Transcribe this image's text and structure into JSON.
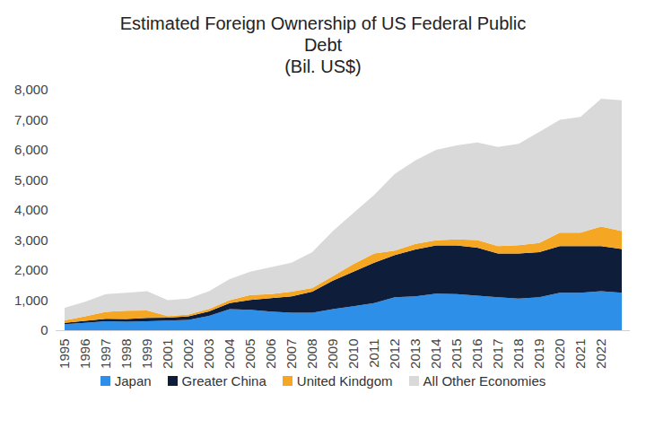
{
  "chart_data": {
    "type": "area",
    "title": "Estimated Foreign Ownership of US Federal Public Debt",
    "subtitle": "(Bil. US$)",
    "stacked": true,
    "grid": false,
    "legend": "bottom",
    "categories": [
      "1995",
      "1996",
      "1997",
      "1998",
      "1999",
      "2001",
      "2002",
      "2003",
      "2004",
      "2005",
      "2006",
      "2007",
      "2008",
      "2009",
      "2010",
      "2011",
      "2012",
      "2013",
      "2014",
      "2015",
      "2016",
      "2017",
      "2018",
      "2019",
      "2020",
      "2021",
      "2022",
      null
    ],
    "ylim": [
      0,
      8000
    ],
    "yticks": [
      0,
      {
        "value": 1000,
        "label": "1,000"
      },
      {
        "value": 2000,
        "label": "2,000"
      },
      {
        "value": 3000,
        "label": "3,000"
      },
      {
        "value": 4000,
        "label": "4,000"
      },
      {
        "value": 5000,
        "label": "5,000"
      },
      {
        "value": 6000,
        "label": "6,000"
      },
      {
        "value": 7000,
        "label": "7,000"
      },
      {
        "value": 8000,
        "label": "8,000"
      }
    ],
    "series": [
      {
        "name": "Japan",
        "color": "#2E8FE8",
        "values": [
          200,
          250,
          300,
          280,
          300,
          320,
          340,
          480,
          700,
          680,
          620,
          580,
          580,
          700,
          800,
          900,
          1100,
          1130,
          1220,
          1200,
          1150,
          1100,
          1050,
          1100,
          1250,
          1250,
          1300,
          1250
        ]
      },
      {
        "name": "Greater China",
        "color": "#0E1E3A",
        "values": [
          50,
          60,
          80,
          90,
          110,
          100,
          120,
          150,
          200,
          330,
          450,
          550,
          700,
          950,
          1150,
          1350,
          1400,
          1560,
          1600,
          1620,
          1600,
          1450,
          1500,
          1500,
          1550,
          1550,
          1500,
          1450
        ]
      },
      {
        "name": "United Kindgom",
        "color": "#F5A623",
        "values": [
          80,
          150,
          230,
          280,
          250,
          50,
          60,
          80,
          100,
          160,
          130,
          150,
          120,
          150,
          250,
          300,
          150,
          180,
          170,
          200,
          250,
          250,
          280,
          300,
          450,
          450,
          650,
          600
        ]
      },
      {
        "name": "All Other Economies",
        "color": "#D9D9D9",
        "values": [
          420,
          490,
          590,
          600,
          640,
          530,
          530,
          590,
          700,
          780,
          900,
          970,
          1200,
          1500,
          1700,
          1950,
          2550,
          2780,
          3010,
          3130,
          3250,
          3300,
          3370,
          3700,
          3750,
          3850,
          4250,
          4350
        ]
      }
    ]
  }
}
